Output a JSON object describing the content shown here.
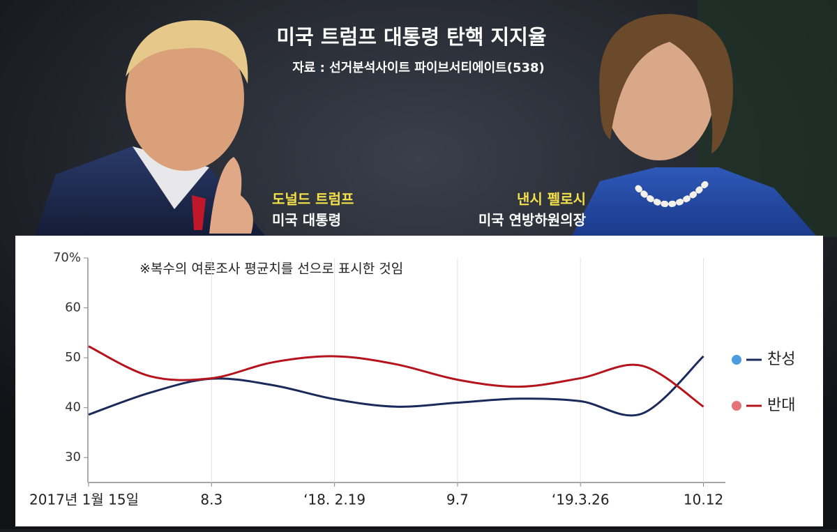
{
  "chart_data": {
    "type": "line",
    "title": "미국 트럼프 대통령 탄핵 지지율",
    "subtitle": "자료 : 선거분석사이트 파이브서티에이트(538)",
    "captions": [
      {
        "name": "도널드 트럼프",
        "role": "미국 대통령"
      },
      {
        "name": "낸시 펠로시",
        "role": "미국 연방하원의장"
      }
    ],
    "annotation": "※복수의 여론조사 평균치를 선으로  표시한 것임",
    "x": [
      0,
      0.5,
      1,
      1.5,
      2,
      2.5,
      3,
      3.5,
      4,
      4.5,
      5
    ],
    "xlim": [
      0,
      5.15
    ],
    "xticks": [
      {
        "value": 0,
        "label": "2017년 1월 15일"
      },
      {
        "value": 1,
        "label": "8.3"
      },
      {
        "value": 2,
        "label": "‘18. 2.19"
      },
      {
        "value": 3,
        "label": "9.7"
      },
      {
        "value": 4,
        "label": "‘19.3.26"
      },
      {
        "value": 5,
        "label": "10.12"
      }
    ],
    "ylim": [
      25,
      70
    ],
    "yticks": [
      30,
      40,
      50,
      60,
      {
        "value": 70,
        "label": "70%"
      }
    ],
    "grid": true,
    "series": [
      {
        "name": "찬성",
        "color": "#1b2a5a",
        "dot_color": "#4d9be0",
        "values": [
          38.6,
          43.0,
          45.8,
          44.5,
          41.7,
          40.2,
          41.0,
          41.8,
          41.3,
          38.8,
          50.3
        ]
      },
      {
        "name": "반대",
        "color": "#b5141c",
        "dot_color": "#e5737a",
        "values": [
          52.3,
          46.3,
          45.9,
          49.1,
          50.3,
          48.7,
          45.6,
          44.2,
          45.9,
          48.4,
          40.2
        ]
      }
    ]
  }
}
